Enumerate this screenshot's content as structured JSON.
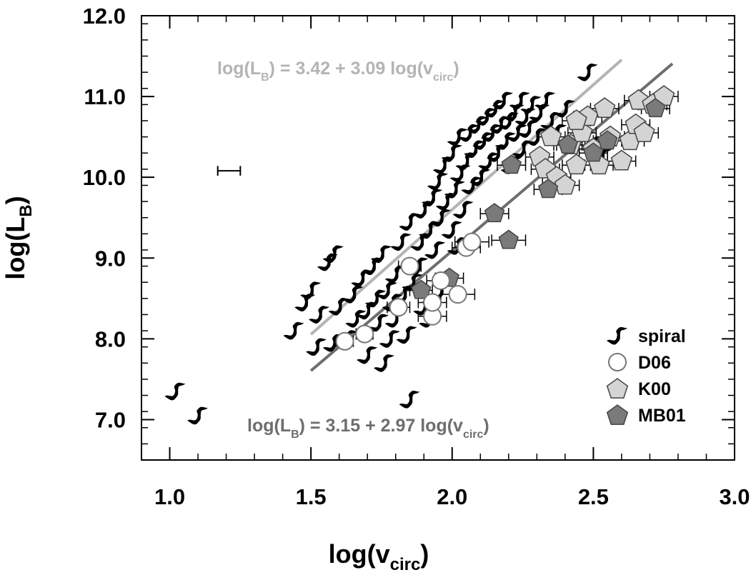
{
  "chart_data": {
    "type": "scatter",
    "xlabel": "log(v",
    "xlabel_sub": "circ",
    "xlabel_end": ")",
    "ylabel": "log(L",
    "ylabel_sub": "B",
    "ylabel_end": ")",
    "xlim": [
      0.9,
      3.0
    ],
    "ylim": [
      6.5,
      12.0
    ],
    "xticks": [
      1.0,
      1.5,
      2.0,
      2.5,
      3.0
    ],
    "xtick_labels": [
      "1.0",
      "1.5",
      "2.0",
      "2.5",
      "3.0"
    ],
    "yticks": [
      7.0,
      8.0,
      9.0,
      10.0,
      11.0,
      12.0
    ],
    "ytick_labels": [
      "7.0",
      "8.0",
      "9.0",
      "10.0",
      "11.0",
      "12.0"
    ],
    "grid": false,
    "legend_position": "bottom-right",
    "colors": {
      "d06_fill": "#ffffff",
      "k00_fill": "#d4d4d4",
      "mb01_fill": "#7a7a7a",
      "fit_light": "#b4b4b4",
      "fit_dark": "#6e6e6e",
      "spiral": "#000000"
    },
    "fits": [
      {
        "name": "spiral fit",
        "intercept": 3.42,
        "slope": 3.09,
        "x_range": [
          1.5,
          2.6
        ],
        "color": "#b4b4b4",
        "label_main": "log(L",
        "label_sub": "B",
        "label_mid": ") = 3.42 + 3.09 log(v",
        "label_sub2": "circ",
        "label_end": ")"
      },
      {
        "name": "dwarf fit",
        "intercept": 3.15,
        "slope": 2.97,
        "x_range": [
          1.5,
          2.78
        ],
        "color": "#6e6e6e",
        "label_main": "log(L",
        "label_sub": "B",
        "label_mid": ") = 3.15 + 2.97 log(v",
        "label_sub2": "circ",
        "label_end": ")"
      }
    ],
    "typical_error_bar": {
      "x": 1.21,
      "y": 10.08,
      "xerr": 0.04,
      "yerr": 0.06
    },
    "series": [
      {
        "name": "spiral",
        "marker": "spiral",
        "points": [
          [
            1.02,
            7.35
          ],
          [
            1.1,
            7.05
          ],
          [
            1.44,
            8.1
          ],
          [
            1.48,
            8.45
          ],
          [
            1.5,
            8.6
          ],
          [
            1.53,
            8.3
          ],
          [
            1.56,
            8.95
          ],
          [
            1.58,
            9.05
          ],
          [
            1.52,
            7.9
          ],
          [
            1.58,
            7.95
          ],
          [
            1.6,
            8.4
          ],
          [
            1.63,
            8.0
          ],
          [
            1.65,
            8.55
          ],
          [
            1.66,
            8.25
          ],
          [
            1.68,
            8.75
          ],
          [
            1.7,
            8.35
          ],
          [
            1.7,
            7.8
          ],
          [
            1.72,
            8.9
          ],
          [
            1.73,
            8.5
          ],
          [
            1.74,
            8.2
          ],
          [
            1.75,
            9.05
          ],
          [
            1.76,
            7.7
          ],
          [
            1.77,
            8.6
          ],
          [
            1.78,
            8.0
          ],
          [
            1.79,
            8.45
          ],
          [
            1.8,
            8.8
          ],
          [
            1.8,
            8.25
          ],
          [
            1.82,
            9.2
          ],
          [
            1.83,
            8.55
          ],
          [
            1.84,
            8.05
          ],
          [
            1.85,
            9.45
          ],
          [
            1.86,
            8.7
          ],
          [
            1.88,
            8.9
          ],
          [
            1.89,
            9.2
          ],
          [
            1.9,
            9.6
          ],
          [
            1.9,
            8.4
          ],
          [
            1.92,
            9.35
          ],
          [
            1.93,
            9.75
          ],
          [
            1.94,
            9.1
          ],
          [
            1.95,
            9.95
          ],
          [
            1.96,
            9.5
          ],
          [
            1.97,
            10.15
          ],
          [
            1.98,
            9.7
          ],
          [
            2.0,
            10.3
          ],
          [
            2.0,
            9.35
          ],
          [
            2.01,
            9.85
          ],
          [
            2.02,
            10.5
          ],
          [
            2.03,
            10.05
          ],
          [
            2.04,
            9.6
          ],
          [
            2.05,
            10.2
          ],
          [
            2.06,
            10.55
          ],
          [
            2.07,
            9.9
          ],
          [
            2.08,
            10.35
          ],
          [
            2.09,
            10.65
          ],
          [
            2.1,
            10.0
          ],
          [
            2.11,
            10.45
          ],
          [
            2.12,
            10.75
          ],
          [
            2.13,
            10.2
          ],
          [
            2.14,
            10.55
          ],
          [
            2.15,
            10.85
          ],
          [
            2.16,
            10.3
          ],
          [
            2.17,
            10.65
          ],
          [
            2.18,
            10.95
          ],
          [
            2.19,
            10.45
          ],
          [
            2.2,
            10.7
          ],
          [
            2.21,
            10.15
          ],
          [
            2.22,
            10.8
          ],
          [
            2.23,
            10.55
          ],
          [
            2.24,
            10.95
          ],
          [
            2.25,
            10.35
          ],
          [
            2.26,
            10.75
          ],
          [
            2.27,
            10.6
          ],
          [
            2.28,
            10.9
          ],
          [
            2.3,
            10.5
          ],
          [
            2.31,
            10.8
          ],
          [
            2.33,
            10.95
          ],
          [
            2.35,
            10.7
          ],
          [
            2.37,
            10.55
          ],
          [
            2.4,
            10.85
          ],
          [
            2.43,
            10.45
          ],
          [
            2.46,
            10.75
          ],
          [
            2.5,
            10.4
          ],
          [
            2.53,
            10.25
          ],
          [
            2.48,
            11.3
          ],
          [
            1.85,
            7.25
          ],
          [
            2.02,
            9.15
          ],
          [
            1.96,
            8.6
          ],
          [
            1.92,
            8.25
          ]
        ]
      },
      {
        "name": "D06",
        "marker": "circle",
        "points": [
          {
            "x": 1.62,
            "y": 7.97,
            "xerr": 0.03
          },
          {
            "x": 1.69,
            "y": 8.06,
            "xerr": 0.03
          },
          {
            "x": 1.81,
            "y": 8.39,
            "xerr": 0.04
          },
          {
            "x": 1.85,
            "y": 8.9,
            "xerr": 0.04
          },
          {
            "x": 1.93,
            "y": 8.28,
            "xerr": 0.05
          },
          {
            "x": 1.93,
            "y": 8.45,
            "xerr": 0.05
          },
          {
            "x": 1.96,
            "y": 8.72,
            "xerr": 0.05
          },
          {
            "x": 2.02,
            "y": 8.55,
            "xerr": 0.06
          },
          {
            "x": 2.05,
            "y": 9.13,
            "xerr": 0.05
          },
          {
            "x": 2.07,
            "y": 9.2,
            "xerr": 0.06
          }
        ]
      },
      {
        "name": "K00",
        "marker": "pentagon",
        "points": [
          {
            "x": 2.31,
            "y": 10.25,
            "xerr": 0.05
          },
          {
            "x": 2.33,
            "y": 10.1,
            "xerr": 0.05
          },
          {
            "x": 2.35,
            "y": 10.5,
            "xerr": 0.05
          },
          {
            "x": 2.37,
            "y": 10.0,
            "xerr": 0.05
          },
          {
            "x": 2.4,
            "y": 9.9,
            "xerr": 0.05
          },
          {
            "x": 2.42,
            "y": 10.4,
            "xerr": 0.05
          },
          {
            "x": 2.44,
            "y": 10.15,
            "xerr": 0.05
          },
          {
            "x": 2.46,
            "y": 10.55,
            "xerr": 0.05
          },
          {
            "x": 2.48,
            "y": 10.75,
            "xerr": 0.05
          },
          {
            "x": 2.5,
            "y": 10.35,
            "xerr": 0.05
          },
          {
            "x": 2.52,
            "y": 10.15,
            "xerr": 0.05
          },
          {
            "x": 2.54,
            "y": 10.85,
            "xerr": 0.05
          },
          {
            "x": 2.56,
            "y": 10.5,
            "xerr": 0.05
          },
          {
            "x": 2.6,
            "y": 10.2,
            "xerr": 0.05
          },
          {
            "x": 2.63,
            "y": 10.45,
            "xerr": 0.05
          },
          {
            "x": 2.65,
            "y": 10.65,
            "xerr": 0.05
          },
          {
            "x": 2.68,
            "y": 10.55,
            "xerr": 0.05
          },
          {
            "x": 2.66,
            "y": 10.95,
            "xerr": 0.05
          },
          {
            "x": 2.71,
            "y": 10.9,
            "xerr": 0.05
          },
          {
            "x": 2.75,
            "y": 11.0,
            "xerr": 0.05
          },
          {
            "x": 2.44,
            "y": 10.7,
            "xerr": 0.05
          }
        ]
      },
      {
        "name": "MB01",
        "marker": "pentagon",
        "points": [
          {
            "x": 1.89,
            "y": 8.6,
            "xerr": 0.04
          },
          {
            "x": 1.99,
            "y": 8.75,
            "xerr": 0.05
          },
          {
            "x": 2.15,
            "y": 9.55,
            "xerr": 0.05
          },
          {
            "x": 2.2,
            "y": 9.22,
            "xerr": 0.06
          },
          {
            "x": 2.21,
            "y": 10.15,
            "xerr": 0.05
          },
          {
            "x": 2.34,
            "y": 9.85,
            "xerr": 0.05
          },
          {
            "x": 2.41,
            "y": 10.4,
            "xerr": 0.05
          },
          {
            "x": 2.5,
            "y": 10.3,
            "xerr": 0.05
          },
          {
            "x": 2.55,
            "y": 10.45,
            "xerr": 0.05
          },
          {
            "x": 2.72,
            "y": 10.85,
            "xerr": 0.05
          }
        ]
      }
    ],
    "legend": [
      {
        "label": "spiral",
        "marker": "spiral"
      },
      {
        "label": "D06",
        "marker": "circle"
      },
      {
        "label": "K00",
        "marker": "pentagon-light"
      },
      {
        "label": "MB01",
        "marker": "pentagon-dark"
      }
    ]
  }
}
